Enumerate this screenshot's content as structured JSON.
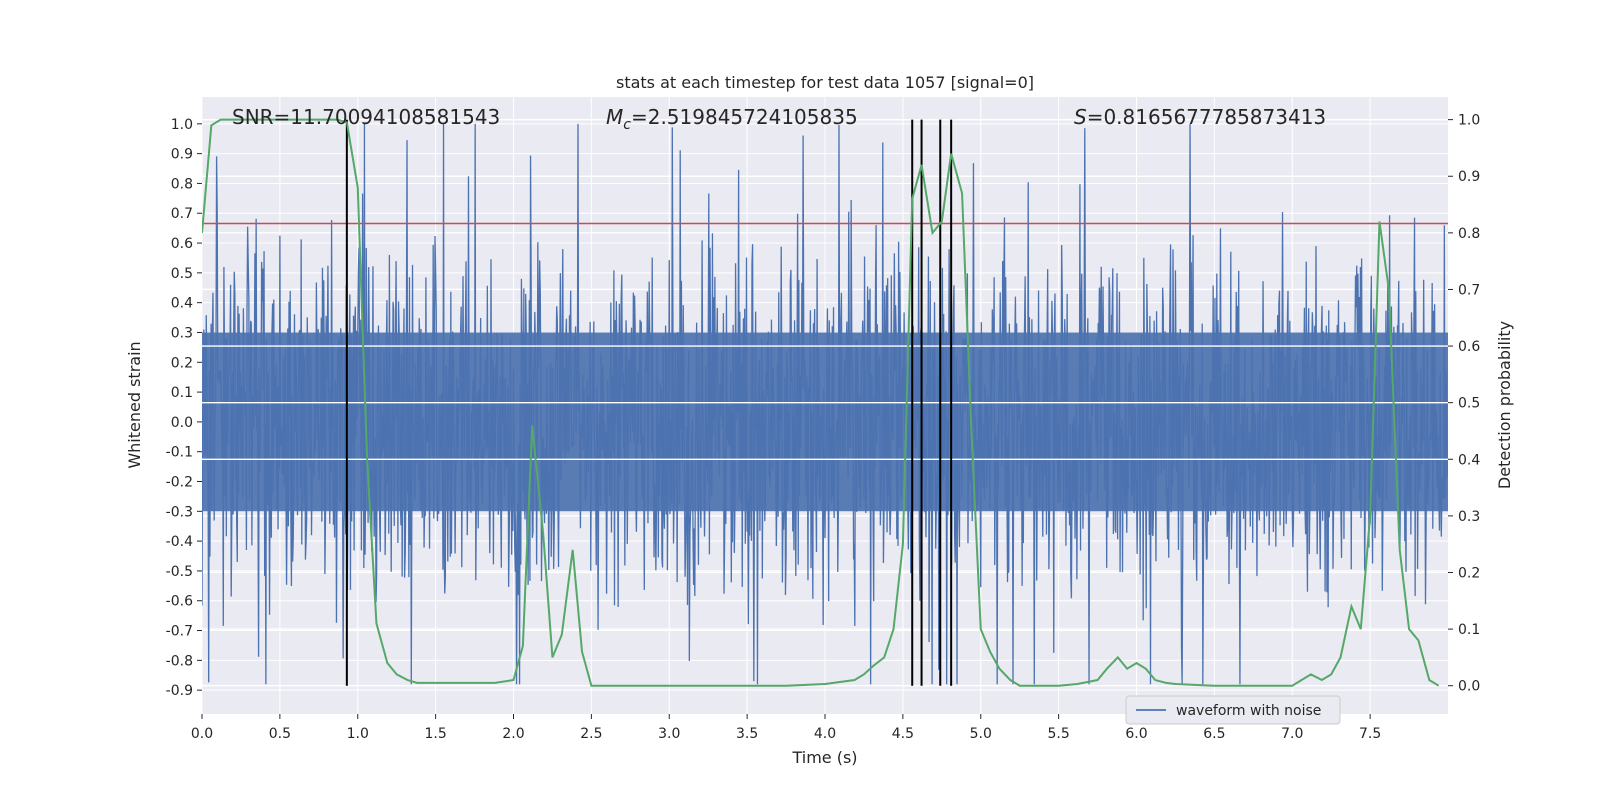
{
  "chart_data": {
    "type": "line",
    "title": "stats at each timestep for test data 1057 [signal=0]",
    "xlabel": "Time (s)",
    "ylabel": "Whitened strain",
    "ylabel_right": "Detection probability",
    "xlim": [
      0,
      8
    ],
    "ylim_left": [
      -0.98,
      1.09
    ],
    "ylim_right": [
      -0.05,
      1.04
    ],
    "x_ticks": [
      "0.0",
      "0.5",
      "1.0",
      "1.5",
      "2.0",
      "2.5",
      "3.0",
      "3.5",
      "4.0",
      "4.5",
      "5.0",
      "5.5",
      "6.0",
      "6.5",
      "7.0",
      "7.5"
    ],
    "y_ticks_left": [
      "1.0",
      "0.9",
      "0.8",
      "0.7",
      "0.6",
      "0.5",
      "0.4",
      "0.3",
      "0.2",
      "0.1",
      "0.0",
      "-0.1",
      "-0.2",
      "-0.3",
      "-0.4",
      "-0.5",
      "-0.6",
      "-0.7",
      "-0.8",
      "-0.9"
    ],
    "y_ticks_right": [
      "1.0",
      "0.9",
      "0.8",
      "0.7",
      "0.6",
      "0.5",
      "0.4",
      "0.3",
      "0.2",
      "0.1",
      "0.0"
    ],
    "annotations": {
      "snr": "SNR=11.70094108581543",
      "mc_symbol": "M",
      "mc_sub": "c",
      "mc_value": "=2.519845724105835",
      "s_symbol": "S",
      "s_value": "=0.8165677785873413"
    },
    "threshold": {
      "value": 0.8165677785873413,
      "axis": "right",
      "color": "#c44e52"
    },
    "event_lines": {
      "x": [
        0.93,
        4.56,
        4.62,
        4.74,
        4.81
      ],
      "color": "#000000"
    },
    "grid": true,
    "legend": {
      "position": "lower-right",
      "entries": [
        {
          "name": "waveform with noise",
          "color": "#4c72b0"
        }
      ]
    },
    "series": [
      {
        "name": "waveform with noise",
        "axis": "left",
        "color": "#4c72b0",
        "description_stats": {
          "core_band": [
            -0.3,
            0.3
          ],
          "max": 1.0,
          "min": -0.88,
          "n_samples": 2048
        }
      },
      {
        "axis": "right",
        "color": "#55a868",
        "x": [
          0.0,
          0.06,
          0.12,
          0.2,
          0.3,
          0.4,
          0.5,
          0.6,
          0.7,
          0.8,
          0.87,
          0.93,
          1.0,
          1.06,
          1.12,
          1.19,
          1.25,
          1.32,
          1.38,
          1.5,
          1.62,
          1.75,
          1.88,
          2.0,
          2.06,
          2.12,
          2.19,
          2.25,
          2.31,
          2.38,
          2.44,
          2.5,
          2.56,
          2.62,
          2.75,
          3.0,
          3.25,
          3.5,
          3.75,
          4.0,
          4.19,
          4.25,
          4.31,
          4.38,
          4.44,
          4.5,
          4.56,
          4.62,
          4.69,
          4.75,
          4.81,
          4.88,
          4.94,
          5.0,
          5.06,
          5.12,
          5.19,
          5.25,
          5.5,
          5.62,
          5.75,
          5.81,
          5.88,
          5.94,
          6.0,
          6.06,
          6.12,
          6.19,
          6.25,
          6.5,
          6.75,
          7.0,
          7.06,
          7.12,
          7.19,
          7.25,
          7.31,
          7.38,
          7.44,
          7.5,
          7.56,
          7.62,
          7.69,
          7.75,
          7.81,
          7.88,
          7.94
        ],
        "y": [
          0.8,
          0.99,
          1.0,
          1.0,
          1.0,
          1.0,
          1.0,
          1.0,
          1.0,
          1.0,
          1.0,
          0.995,
          0.88,
          0.4,
          0.11,
          0.04,
          0.02,
          0.01,
          0.005,
          0.005,
          0.005,
          0.005,
          0.005,
          0.01,
          0.07,
          0.46,
          0.27,
          0.05,
          0.09,
          0.24,
          0.06,
          0.0,
          0.0,
          0.0,
          0.0,
          0.0,
          0.0,
          0.0,
          0.0,
          0.003,
          0.01,
          0.02,
          0.035,
          0.05,
          0.1,
          0.25,
          0.86,
          0.92,
          0.8,
          0.82,
          0.94,
          0.87,
          0.45,
          0.1,
          0.06,
          0.03,
          0.01,
          0.0,
          0.0,
          0.003,
          0.01,
          0.03,
          0.05,
          0.03,
          0.04,
          0.03,
          0.01,
          0.005,
          0.003,
          0.0,
          0.0,
          0.0,
          0.01,
          0.02,
          0.01,
          0.02,
          0.05,
          0.14,
          0.1,
          0.3,
          0.82,
          0.7,
          0.24,
          0.1,
          0.08,
          0.01,
          0.0
        ]
      }
    ]
  }
}
